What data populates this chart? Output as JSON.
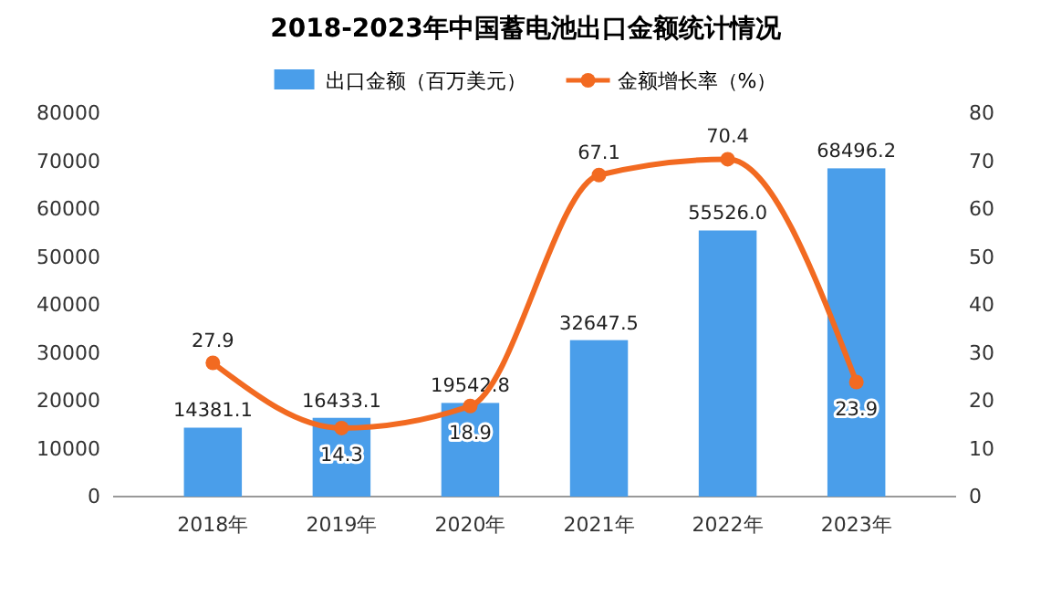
{
  "chart_data": {
    "type": "bar",
    "title": "2018-2023年中国蓄电池出口金额统计情况",
    "categories": [
      "2018年",
      "2019年",
      "2020年",
      "2021年",
      "2022年",
      "2023年"
    ],
    "series": [
      {
        "name": "出口金额（百万美元）",
        "color": "#4a9eea",
        "values": [
          14381.1,
          16433.1,
          19542.8,
          32647.5,
          55526.0,
          68496.2
        ],
        "value_labels": [
          "14381.1",
          "16433.1",
          "19542.8",
          "32647.5",
          "55526.0",
          "68496.2"
        ]
      },
      {
        "name": "金额增长率（%）",
        "type": "line",
        "axis": "y2",
        "color": "#f26a21",
        "marker": "circle",
        "values": [
          27.9,
          14.3,
          18.9,
          67.1,
          70.4,
          23.9
        ],
        "value_labels": [
          "27.9",
          "14.3",
          "18.9",
          "67.1",
          "70.4",
          "23.9"
        ]
      }
    ],
    "ylim": [
      0,
      80000
    ],
    "yticks": [
      0,
      10000,
      20000,
      30000,
      40000,
      50000,
      60000,
      70000,
      80000
    ],
    "y2lim": [
      0,
      80
    ],
    "y2ticks": [
      0,
      10,
      20,
      30,
      40,
      50,
      60,
      70,
      80
    ],
    "legend": "top",
    "grid": false
  }
}
